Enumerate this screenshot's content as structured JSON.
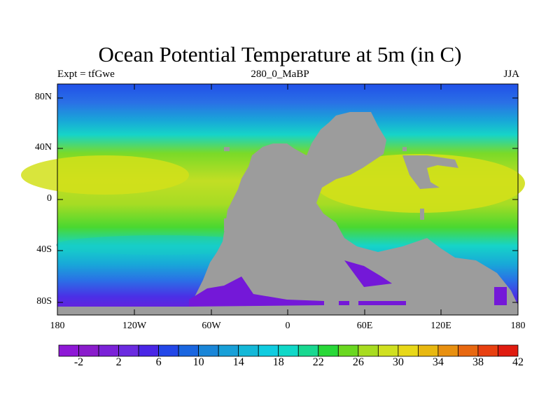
{
  "title": "Ocean Potential Temperature at 5m (in C)",
  "subtitle_left": "Expt = tfGwe",
  "subtitle_center": "280_0_MaBP",
  "subtitle_right": "JJA",
  "y_ticks": [
    "80N",
    "40N",
    "0",
    "40S",
    "80S"
  ],
  "x_ticks": [
    "180",
    "120W",
    "60W",
    "0",
    "60E",
    "120E",
    "180"
  ],
  "colorbar": {
    "colors": [
      "#8e18d6",
      "#8a1ccc",
      "#7b22d8",
      "#6b2be0",
      "#4a26e6",
      "#2347e8",
      "#1a66e0",
      "#1a86d8",
      "#18a0d8",
      "#14b8d8",
      "#10cce0",
      "#10d8c8",
      "#18d890",
      "#28d838",
      "#6ad820",
      "#a8dc20",
      "#d0e020",
      "#e8d818",
      "#e8b810",
      "#e89010",
      "#e86810",
      "#e84010",
      "#e01c10"
    ],
    "labels": [
      "-2",
      "2",
      "6",
      "10",
      "14",
      "18",
      "22",
      "26",
      "30",
      "34",
      "38",
      "42"
    ]
  },
  "legend_colors": {
    "land": "#9c9c9c",
    "polar": "#7418d8",
    "cold": "#2050e8",
    "cool": "#18a8d8",
    "mild": "#16d4c8",
    "warm": "#7ada28",
    "hot": "#d2e01a"
  }
}
